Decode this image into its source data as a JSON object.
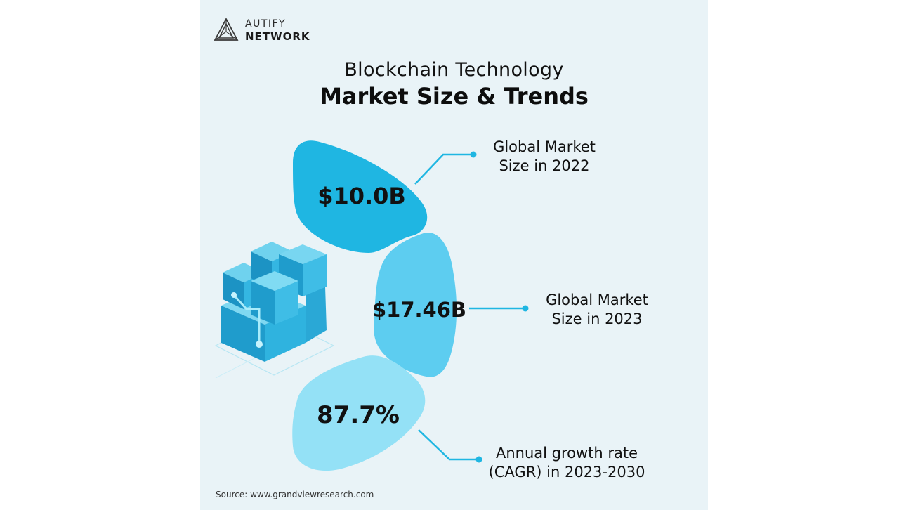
{
  "brand": {
    "top": "AUTIFY",
    "bottom": "NETWORK"
  },
  "title": {
    "line1": "Blockchain Technology",
    "line2": "Market Size & Trends"
  },
  "stats": [
    {
      "value": "$10.0B",
      "label": "Global Market\nSize in 2022"
    },
    {
      "value": "$17.46B",
      "label": "Global Market\nSize in 2023"
    },
    {
      "value": "87.7%",
      "label": "Annual growth rate\n(CAGR) in 2023-2030"
    }
  ],
  "source": "Source: www.grandviewresearch.com",
  "colors": {
    "segment1": "#1fb6e2",
    "segment2": "#5dcdf0",
    "segment3": "#94e1f6",
    "accent": "#1fb6e2",
    "background": "#e9f3f7"
  },
  "icons": {
    "logo": "triangle-logo-icon",
    "illustration": "blockchain-cubes-icon"
  }
}
